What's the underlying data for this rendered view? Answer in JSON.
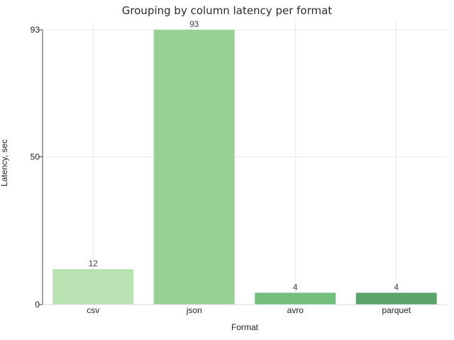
{
  "chart_data": {
    "type": "bar",
    "title": "Grouping by column latency per format",
    "xlabel": "Format",
    "ylabel": "Latency, sec",
    "categories": [
      "csv",
      "json",
      "avro",
      "parquet"
    ],
    "values": [
      12,
      93,
      4,
      4
    ],
    "data_labels": [
      "12",
      "93",
      "4",
      "4"
    ],
    "y_ticks": [
      0,
      50,
      93
    ],
    "ylim": [
      0,
      93
    ],
    "grid": true,
    "legend": "none",
    "bar_colors": [
      "#b9e2b2",
      "#98d193",
      "#72bf7c",
      "#58a46a"
    ]
  }
}
